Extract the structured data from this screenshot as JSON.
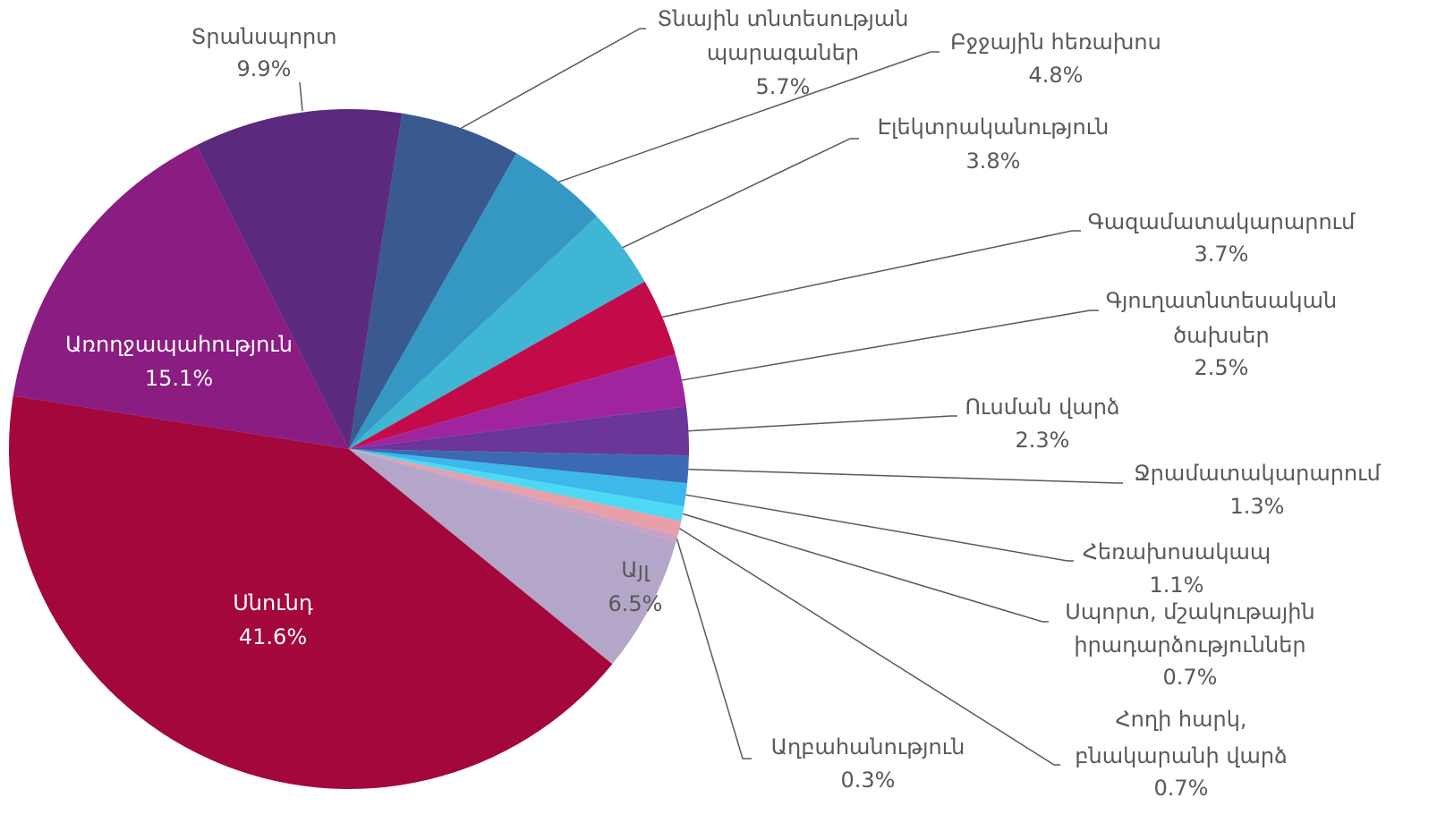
{
  "chart_data": {
    "type": "pie",
    "categories": [
      "Տնային տնտեսության պարագաներ",
      "Բջջային հեռախոս",
      "Էլեկտրականություն",
      "Գազամատակարարում",
      "Գյուղատնտեսական ծախսեր",
      "Ուսման վարձ",
      "Ջրամատակարարում",
      "Հեռախոսակապ",
      "Սպորտ, մշակութային իրադարձություններ",
      "Հողի հարկ, բնակարանի վարձ",
      "Աղբահանություն",
      "Այլ",
      "Սնունդ",
      "Առողջապահություն",
      "Տրանսպորտ"
    ],
    "values": [
      5.7,
      4.8,
      3.8,
      3.7,
      2.5,
      2.3,
      1.3,
      1.1,
      0.7,
      0.7,
      0.3,
      6.5,
      41.6,
      15.1,
      9.9
    ],
    "value_labels": [
      "5.7%",
      "4.8%",
      "3.8%",
      "3.7%",
      "2.5%",
      "2.3%",
      "1.3%",
      "1.1%",
      "0.7%",
      "0.7%",
      "0.3%",
      "6.5%",
      "41.6%",
      "15.1%",
      "9.9%"
    ],
    "colors": [
      "#3a5a8f",
      "#3597c4",
      "#3fb6d3",
      "#c40b4a",
      "#a0249d",
      "#6b3698",
      "#3b6ab2",
      "#3cb8ea",
      "#4dd9f5",
      "#e8a0a8",
      "#c9a0c8",
      "#b3a6c8",
      "#a3073b",
      "#8a1c82",
      "#5b2a7e"
    ]
  }
}
